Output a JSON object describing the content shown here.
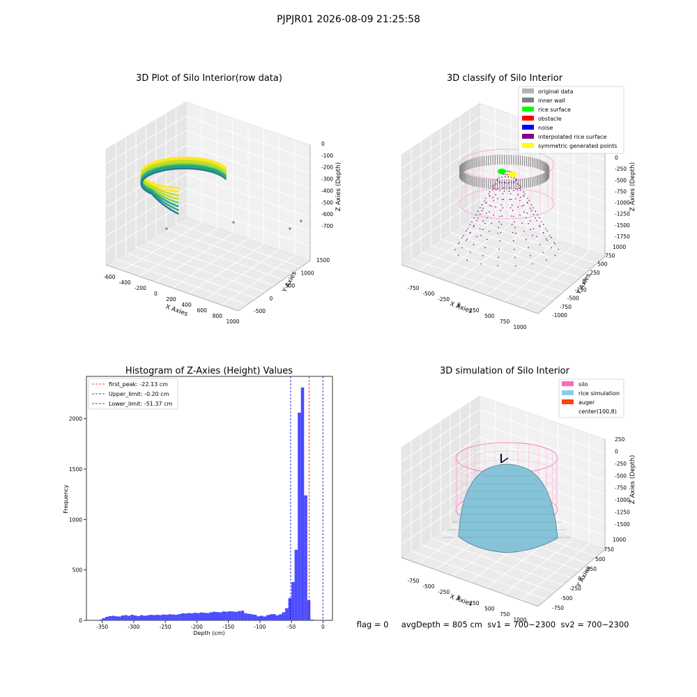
{
  "figure": {
    "suptitle": "PJPJR01 2026-08-09 21:25:58",
    "footer": "flag = 0     avgDepth = 805 cm  sv1 = 700~2300  sv2 = 700~2300"
  },
  "colors": {
    "pane_back": "#f1f1f1",
    "pane_side": "#e6e6e6",
    "pane_floor": "#ebebeb",
    "grid": "#ffffff",
    "hist_bar": "#4b4bff",
    "peak_line": "#ff0000",
    "limit_line": "#0000cc"
  },
  "chart_data": [
    {
      "type": "scatter",
      "title": "3D Plot of Silo Interior(row data)",
      "xlabel": "X Axies",
      "ylabel": "Y Axies",
      "zlabel": "Z Axies (Depth)",
      "xticks": [
        "-600",
        "-400",
        "-200",
        "0",
        "200",
        "400",
        "600",
        "800",
        "1000"
      ],
      "yticks": [
        "-500",
        "0",
        "500",
        "1000",
        "1500"
      ],
      "zticks": [
        "0",
        "-100",
        "-200",
        "-300",
        "-400",
        "-500",
        "-600",
        "-700"
      ],
      "colormap": [
        "#2a788e",
        "#22a884",
        "#7ad151",
        "#bddf26",
        "#fde725"
      ],
      "grid": true
    },
    {
      "type": "scatter",
      "title": "3D classify of Silo Interior",
      "xlabel": "X Axies",
      "ylabel": "Y Axies",
      "zlabel": "Z Axies (Depth)",
      "xticks": [
        "-750",
        "-500",
        "-250",
        "0",
        "250",
        "500",
        "750",
        "1000"
      ],
      "yticks": [
        "-1000",
        "-750",
        "-500",
        "-250",
        "0",
        "250",
        "500",
        "750",
        "1000"
      ],
      "zticks": [
        "0",
        "-250",
        "-500",
        "-750",
        "-1000",
        "-1250",
        "-1500",
        "-1750"
      ],
      "legend_position": "top-right",
      "legend": [
        {
          "label": "original data",
          "color": "#b3b3b3"
        },
        {
          "label": "inner wall",
          "color": "#808080"
        },
        {
          "label": "rice surface",
          "color": "#00ff00"
        },
        {
          "label": "obstacle",
          "color": "#ff0000"
        },
        {
          "label": "noise",
          "color": "#0000ff"
        },
        {
          "label": "interpolated rice surface",
          "color": "#800080"
        },
        {
          "label": "symmetric generated points",
          "color": "#ffff00"
        }
      ],
      "grid": true
    },
    {
      "type": "bar",
      "title": "Histogram of Z-Axies (Height) Values",
      "xlabel": "Depth (cm)",
      "ylabel": "Frequency",
      "xlim": [
        -375,
        15
      ],
      "ylim": [
        0,
        2420
      ],
      "xticks": [
        -350,
        -300,
        -250,
        -200,
        -150,
        -100,
        -50,
        0
      ],
      "yticks": [
        0,
        500,
        1000,
        1500,
        2000
      ],
      "bin_width": 5,
      "bin_left_edges": [
        -355,
        -350,
        -345,
        -340,
        -335,
        -330,
        -325,
        -320,
        -315,
        -310,
        -305,
        -300,
        -295,
        -290,
        -285,
        -280,
        -275,
        -270,
        -265,
        -260,
        -255,
        -250,
        -245,
        -240,
        -235,
        -230,
        -225,
        -220,
        -215,
        -210,
        -205,
        -200,
        -195,
        -190,
        -185,
        -180,
        -175,
        -170,
        -165,
        -160,
        -155,
        -150,
        -145,
        -140,
        -135,
        -130,
        -125,
        -120,
        -115,
        -110,
        -105,
        -100,
        -95,
        -90,
        -85,
        -80,
        -75,
        -70,
        -65,
        -60,
        -55,
        -50,
        -45,
        -40,
        -35,
        -30,
        -25,
        -20,
        -15,
        -10,
        -5,
        0
      ],
      "values": [
        8,
        22,
        35,
        42,
        45,
        40,
        38,
        48,
        52,
        45,
        55,
        48,
        42,
        52,
        45,
        50,
        55,
        52,
        55,
        52,
        58,
        55,
        60,
        58,
        55,
        62,
        70,
        68,
        72,
        70,
        75,
        72,
        78,
        75,
        72,
        80,
        85,
        82,
        80,
        88,
        85,
        90,
        88,
        85,
        92,
        95,
        70,
        65,
        60,
        55,
        40,
        45,
        38,
        52,
        60,
        62,
        50,
        60,
        80,
        120,
        220,
        380,
        700,
        2060,
        2310,
        1240,
        200,
        8,
        0,
        0,
        0,
        0
      ],
      "lines": [
        {
          "x": -22.13,
          "label": "first_peak: -22.13 cm",
          "color": "#ff0000"
        },
        {
          "x": -0.2,
          "label": "Upper_limit: -0.20 cm",
          "color": "#0000cc"
        },
        {
          "x": -51.37,
          "label": "Lower_limit: -51.37 cm",
          "color": "#0000cc"
        }
      ],
      "legend_position": "top-left",
      "grid": false
    },
    {
      "type": "area",
      "title": "3D simulation of Silo Interior",
      "xlabel": "X Axies",
      "ylabel": "Y Axies",
      "zlabel": "Z Axies (Depth)",
      "xticks": [
        "-750",
        "-500",
        "-250",
        "0",
        "250",
        "500",
        "750",
        "1000"
      ],
      "yticks": [
        "-750",
        "-500",
        "-250",
        "0",
        "250",
        "500",
        "750",
        "1000"
      ],
      "zticks": [
        "250",
        "0",
        "-250",
        "-500",
        "-750",
        "-1000",
        "-1250",
        "-1500"
      ],
      "legend_position": "top-right",
      "legend": [
        {
          "label": "silo",
          "color": "#ff69b4"
        },
        {
          "label": "rice simulation",
          "color": "#87ceeb"
        },
        {
          "label": "auger",
          "color": "#ff4500"
        },
        {
          "label": "center(100,8)",
          "color": "#ffffff"
        }
      ],
      "grid": true
    }
  ]
}
